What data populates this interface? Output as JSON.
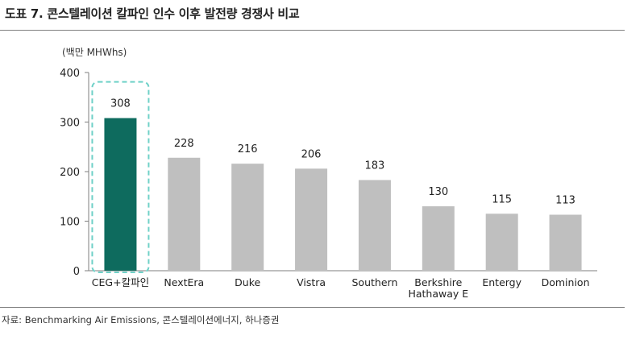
{
  "figure": {
    "title": "도표 7. 콘스텔레이션 칼파인 인수 이후 발전량 경쟁사 비교",
    "unit_label": "(백만 MHWhs)",
    "source": "자료: Benchmarking Air Emissions, 콘스텔레이션에너지, 하나증권"
  },
  "colors": {
    "highlight_bar": "#0e6b5e",
    "other_bars": "#bfbfbf",
    "highlight_outline": "#6fd1c8",
    "axis": "#7f7f7f",
    "text": "#222222"
  },
  "chart_data": {
    "type": "bar",
    "title": "",
    "xlabel": "",
    "ylabel": "(백만 MHWhs)",
    "ylim": [
      0,
      400
    ],
    "yticks": [
      0,
      100,
      200,
      300,
      400
    ],
    "grid": false,
    "legend": "none",
    "categories": [
      "CEG+칼파인",
      "NextEra",
      "Duke",
      "Vistra",
      "Southern",
      "Berkshire Hathaway E",
      "Entergy",
      "Dominion"
    ],
    "category_lines": [
      [
        "CEG+칼파인"
      ],
      [
        "NextEra"
      ],
      [
        "Duke"
      ],
      [
        "Vistra"
      ],
      [
        "Southern"
      ],
      [
        "Berkshire",
        "Hathaway E"
      ],
      [
        "Entergy"
      ],
      [
        "Dominion"
      ]
    ],
    "values": [
      308,
      228,
      216,
      206,
      183,
      130,
      115,
      113
    ],
    "highlight_index": 0
  }
}
